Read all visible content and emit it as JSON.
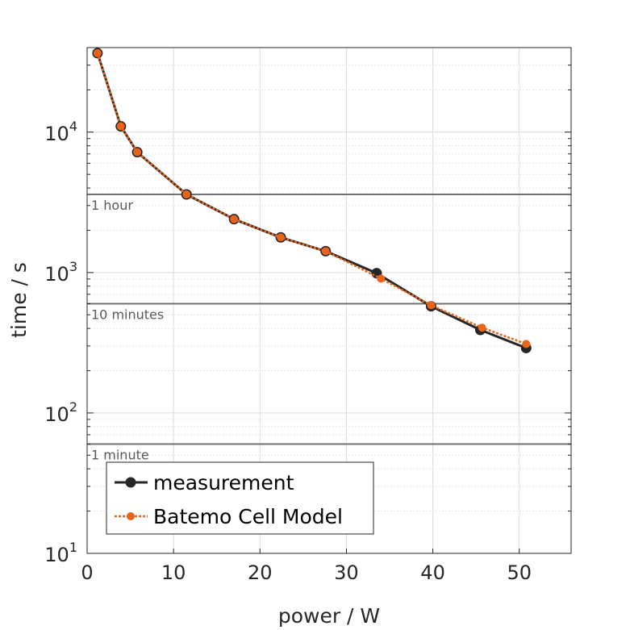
{
  "chart_data": {
    "type": "line",
    "xlabel": "power / W",
    "ylabel": "time / s",
    "xlim": [
      0,
      56
    ],
    "ylim": [
      10,
      40000
    ],
    "yscale": "log",
    "x_ticks": [
      "0",
      "10",
      "20",
      "30",
      "40",
      "50"
    ],
    "y_ticks": [
      {
        "base": "10",
        "exp": "1"
      },
      {
        "base": "10",
        "exp": "2"
      },
      {
        "base": "10",
        "exp": "3"
      },
      {
        "base": "10",
        "exp": "4"
      }
    ],
    "grid": true,
    "legend_position": "bottom-left",
    "reference_lines": [
      {
        "label": "1 hour",
        "y": 3600
      },
      {
        "label": "10 minutes",
        "y": 600
      },
      {
        "label": "1 minute",
        "y": 60
      }
    ],
    "series": [
      {
        "name": "measurement",
        "color": "#262626",
        "x": [
          1.2,
          3.9,
          5.8,
          11.5,
          17.0,
          22.4,
          27.6,
          33.5,
          39.8,
          45.5,
          50.8
        ],
        "y": [
          36500,
          11000,
          7200,
          3600,
          2400,
          1780,
          1420,
          990,
          575,
          390,
          290
        ]
      },
      {
        "name": "Batemo Cell Model",
        "color": "#e8641b",
        "x": [
          1.2,
          3.9,
          5.8,
          11.5,
          17.0,
          22.4,
          27.6,
          34.0,
          39.8,
          45.7,
          50.8
        ],
        "y": [
          36500,
          11000,
          7200,
          3600,
          2400,
          1780,
          1420,
          905,
          585,
          405,
          310
        ]
      }
    ]
  }
}
